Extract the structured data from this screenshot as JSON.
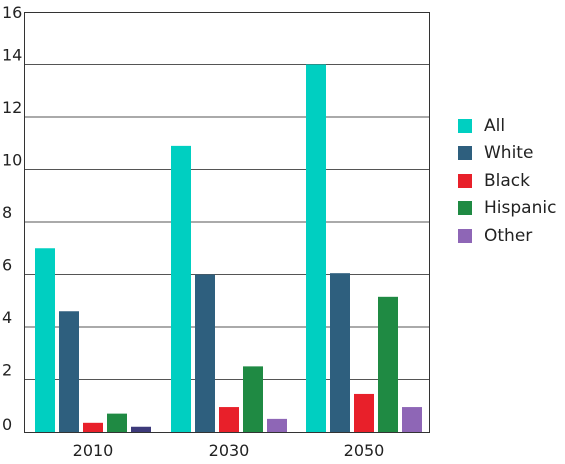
{
  "chart_data": {
    "type": "bar",
    "categories": [
      "2010",
      "2030",
      "2050"
    ],
    "series": [
      {
        "name": "All",
        "color": "#00cfc1",
        "values": [
          7.0,
          10.9,
          14.0
        ]
      },
      {
        "name": "White",
        "color": "#2e5f7e",
        "values": [
          4.6,
          6.0,
          6.05
        ]
      },
      {
        "name": "Black",
        "color": "#e8202a",
        "values": [
          0.35,
          0.95,
          1.45
        ]
      },
      {
        "name": "Hispanic",
        "color": "#1f8a43",
        "values": [
          0.7,
          2.5,
          5.15
        ]
      },
      {
        "name": "Other",
        "color": "#8e66b6",
        "values": [
          0.2,
          0.5,
          0.95
        ]
      }
    ],
    "extra_colors": {
      "other_2010": "#3d3a7a"
    },
    "ylim": [
      0,
      16
    ],
    "yticks": [
      "0",
      "2",
      "4",
      "6",
      "8",
      "10",
      "12",
      "14",
      "16"
    ],
    "grid": true,
    "legend_position": "right"
  }
}
